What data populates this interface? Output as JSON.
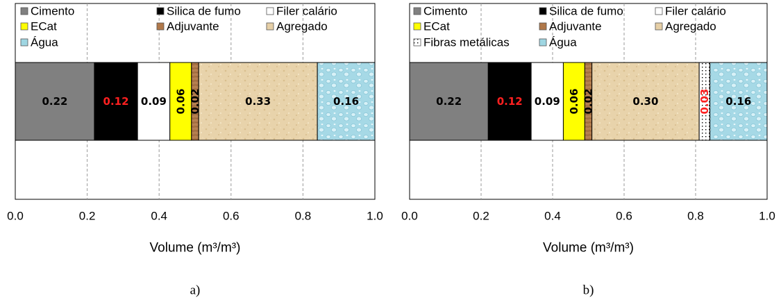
{
  "chart_data": [
    {
      "type": "stacked-bar",
      "orientation": "horizontal",
      "caption": "a)",
      "xlabel": "Volume (m³/m³)",
      "xlim": [
        0,
        1
      ],
      "xticks": [
        "0.0",
        "0.2",
        "0.4",
        "0.6",
        "0.8",
        "1.0"
      ],
      "legend_position": "top",
      "legend_rows": [
        [
          {
            "name": "Cimento",
            "color": "#808080",
            "swatch": "solid"
          },
          {
            "name": "Silica de fumo",
            "color": "#000000",
            "swatch": "solid"
          },
          {
            "name": "Filer calário",
            "color": "#ffffff",
            "swatch": "solid"
          }
        ],
        [
          {
            "name": "ECat",
            "color": "#ffff00",
            "swatch": "solid"
          },
          {
            "name": "Adjuvante",
            "color": "#b0784a",
            "swatch": "solid"
          },
          {
            "name": "Agregado",
            "color": "#e6cfa6",
            "swatch": "solid"
          }
        ],
        [
          {
            "name": "Água",
            "color": "#9fd6e2",
            "swatch": "solid"
          }
        ]
      ],
      "segments": [
        {
          "name": "Cimento",
          "value": 0.22,
          "label": "0.22",
          "color": "#808080",
          "texture": "none",
          "label_color": "#000000",
          "label_rotated": false
        },
        {
          "name": "Silica de fumo",
          "value": 0.12,
          "label": "0.12",
          "color": "#000000",
          "texture": "none",
          "label_color": "#ff2020",
          "label_rotated": false
        },
        {
          "name": "Filer calário",
          "value": 0.09,
          "label": "0.09",
          "color": "#ffffff",
          "texture": "none",
          "label_color": "#000000",
          "label_rotated": false
        },
        {
          "name": "ECat",
          "value": 0.06,
          "label": "0.06",
          "color": "#ffff00",
          "texture": "none",
          "label_color": "#000000",
          "label_rotated": true
        },
        {
          "name": "Adjuvante",
          "value": 0.02,
          "label": "0.02",
          "color": "#b0784a",
          "texture": "wood",
          "label_color": "#000000",
          "label_rotated": true
        },
        {
          "name": "Agregado",
          "value": 0.33,
          "label": "0.33",
          "color": "#e6cfa6",
          "texture": "sand",
          "label_color": "#000000",
          "label_rotated": false
        },
        {
          "name": "Água",
          "value": 0.16,
          "label": "0.16",
          "color": "#9fd6e2",
          "texture": "water",
          "label_color": "#000000",
          "label_rotated": false
        }
      ]
    },
    {
      "type": "stacked-bar",
      "orientation": "horizontal",
      "caption": "b)",
      "xlabel": "Volume (m³/m³)",
      "xlim": [
        0,
        1
      ],
      "xticks": [
        "0.0",
        "0.2",
        "0.4",
        "0.6",
        "0.8",
        "1.0"
      ],
      "legend_position": "top",
      "legend_rows": [
        [
          {
            "name": "Cimento",
            "color": "#808080",
            "swatch": "solid"
          },
          {
            "name": "Silica de fumo",
            "color": "#000000",
            "swatch": "solid"
          },
          {
            "name": "Filer calário",
            "color": "#ffffff",
            "swatch": "solid"
          }
        ],
        [
          {
            "name": "ECat",
            "color": "#ffff00",
            "swatch": "solid"
          },
          {
            "name": "Adjuvante",
            "color": "#b0784a",
            "swatch": "solid"
          },
          {
            "name": "Agregado",
            "color": "#e6cfa6",
            "swatch": "solid"
          }
        ],
        [
          {
            "name": "Fibras metálicas",
            "color": "#ffffff",
            "swatch": "dots"
          },
          {
            "name": "Água",
            "color": "#9fd6e2",
            "swatch": "solid"
          }
        ]
      ],
      "segments": [
        {
          "name": "Cimento",
          "value": 0.22,
          "label": "0.22",
          "color": "#808080",
          "texture": "none",
          "label_color": "#000000",
          "label_rotated": false
        },
        {
          "name": "Silica de fumo",
          "value": 0.12,
          "label": "0.12",
          "color": "#000000",
          "texture": "none",
          "label_color": "#ff2020",
          "label_rotated": false
        },
        {
          "name": "Filer calário",
          "value": 0.09,
          "label": "0.09",
          "color": "#ffffff",
          "texture": "none",
          "label_color": "#000000",
          "label_rotated": false
        },
        {
          "name": "ECat",
          "value": 0.06,
          "label": "0.06",
          "color": "#ffff00",
          "texture": "none",
          "label_color": "#000000",
          "label_rotated": true
        },
        {
          "name": "Adjuvante",
          "value": 0.02,
          "label": "0.02",
          "color": "#b0784a",
          "texture": "wood",
          "label_color": "#000000",
          "label_rotated": true
        },
        {
          "name": "Agregado",
          "value": 0.3,
          "label": "0.30",
          "color": "#e6cfa6",
          "texture": "sand",
          "label_color": "#000000",
          "label_rotated": false
        },
        {
          "name": "Fibras metálicas",
          "value": 0.03,
          "label": "0.03",
          "color": "#ffffff",
          "texture": "dots",
          "label_color": "#ff2020",
          "label_rotated": true
        },
        {
          "name": "Água",
          "value": 0.16,
          "label": "0.16",
          "color": "#9fd6e2",
          "texture": "water",
          "label_color": "#000000",
          "label_rotated": false
        }
      ]
    }
  ]
}
